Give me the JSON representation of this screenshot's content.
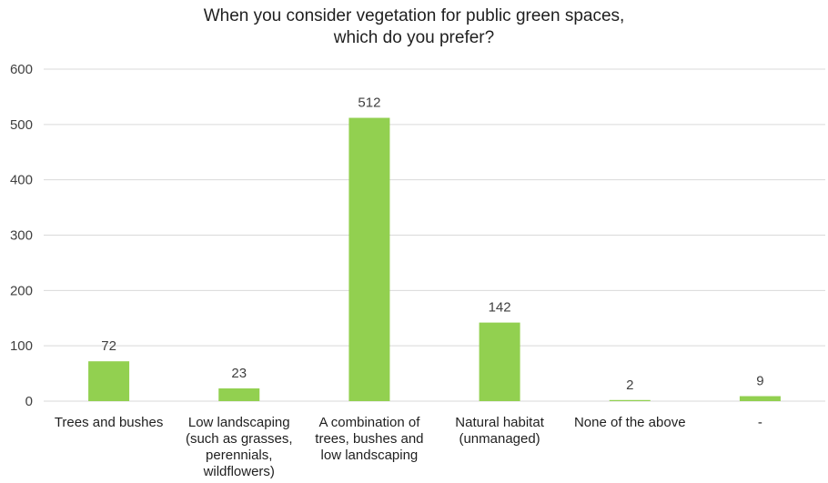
{
  "chart_data": {
    "type": "bar",
    "title_lines": [
      "When you consider vegetation for public green spaces,",
      "which do you prefer?"
    ],
    "categories": [
      [
        "Trees and bushes"
      ],
      [
        "Low landscaping",
        "(such as grasses,",
        "perennials,",
        "wildflowers)"
      ],
      [
        "A combination of",
        "trees, bushes and",
        "low landscaping"
      ],
      [
        "Natural habitat",
        "(unmanaged)"
      ],
      [
        "None of the above"
      ],
      [
        "-"
      ]
    ],
    "values": [
      72,
      23,
      512,
      142,
      2,
      9
    ],
    "data_labels": [
      "72",
      "23",
      "512",
      "142",
      "2",
      "9"
    ],
    "y_ticks": [
      "0",
      "100",
      "200",
      "300",
      "400",
      "500",
      "600"
    ],
    "ylim": [
      0,
      600
    ],
    "xlabel": "",
    "ylabel": "",
    "grid": true,
    "legend": "none",
    "colors": {
      "bar": "#92d050",
      "grid": "#d9d9d9",
      "text": "#404040"
    }
  }
}
